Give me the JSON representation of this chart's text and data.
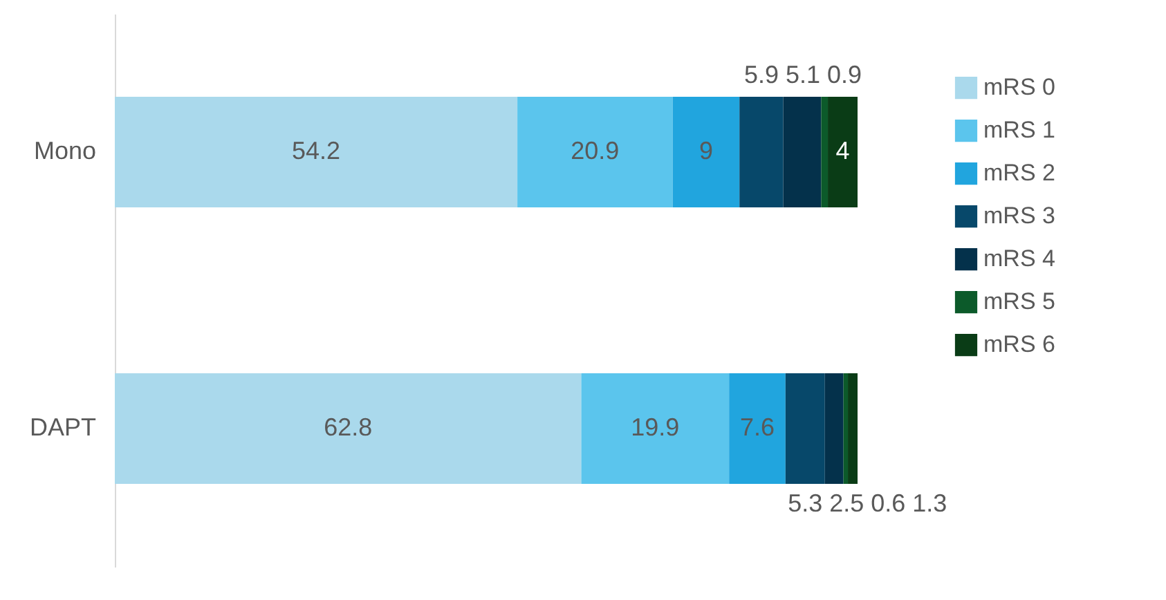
{
  "chart_data": {
    "type": "bar",
    "orientation": "horizontal",
    "stacked": true,
    "data_labels": true,
    "legend": "right",
    "grid": false,
    "categories": [
      "Mono",
      "DAPT"
    ],
    "series": [
      {
        "name": "mRS 0",
        "color": "#aad9ec",
        "values": [
          54.2,
          62.8
        ]
      },
      {
        "name": "mRS 1",
        "color": "#5bc5ed",
        "values": [
          20.9,
          19.9
        ]
      },
      {
        "name": "mRS 2",
        "color": "#21a5de",
        "values": [
          9,
          7.6
        ]
      },
      {
        "name": "mRS 3",
        "color": "#07486a",
        "values": [
          5.9,
          5.3
        ]
      },
      {
        "name": "mRS 4",
        "color": "#04314b",
        "values": [
          5.1,
          2.5
        ]
      },
      {
        "name": "mRS 5",
        "color": "#0c5a2a",
        "values": [
          0.9,
          0.6
        ]
      },
      {
        "name": "mRS 6",
        "color": "#0a3c16",
        "values": [
          4,
          1.3
        ]
      }
    ]
  }
}
